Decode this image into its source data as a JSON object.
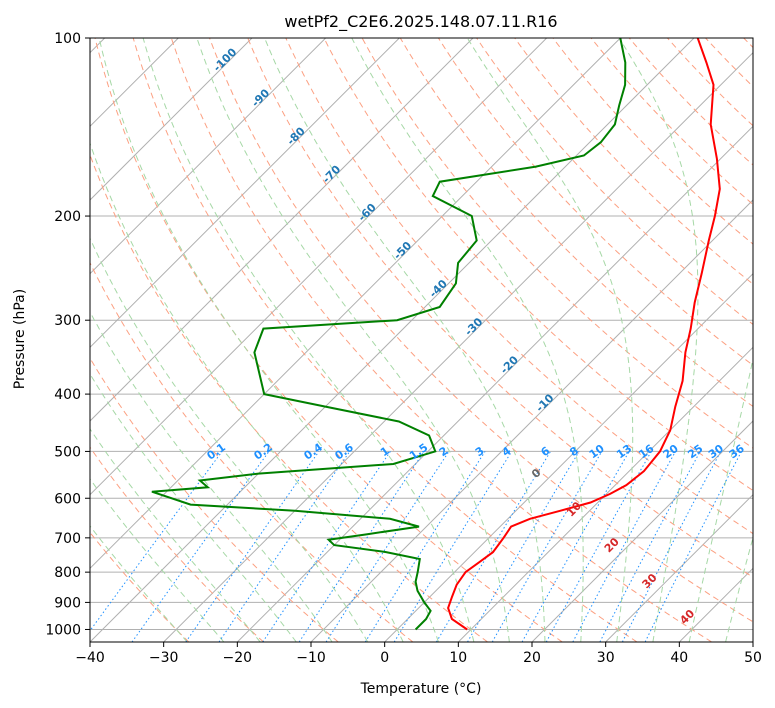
{
  "chart_data": {
    "type": "line",
    "title": "wetPf2_C2E6.2025.148.07.11.R16",
    "xlabel": "Temperature (°C)",
    "ylabel": "Pressure (hPa)",
    "xlim": [
      -40,
      50
    ],
    "ylim": [
      1050,
      100
    ],
    "y_scale": "log",
    "x_ticks": [
      -40,
      -30,
      -20,
      -10,
      0,
      10,
      20,
      30,
      40,
      50
    ],
    "y_ticks": [
      100,
      200,
      300,
      400,
      500,
      600,
      700,
      800,
      900,
      1000
    ],
    "grid": true,
    "series": [
      {
        "color": "#ff0000",
        "points": [
          {
            "p": 1000,
            "t": 9.5
          },
          {
            "p": 960,
            "t": 6
          },
          {
            "p": 920,
            "t": 4
          },
          {
            "p": 880,
            "t": 3
          },
          {
            "p": 840,
            "t": 2
          },
          {
            "p": 800,
            "t": 1.5
          },
          {
            "p": 770,
            "t": 2
          },
          {
            "p": 740,
            "t": 2.5
          },
          {
            "p": 700,
            "t": 2
          },
          {
            "p": 670,
            "t": 1.5
          },
          {
            "p": 650,
            "t": 3
          },
          {
            "p": 630,
            "t": 6
          },
          {
            "p": 610,
            "t": 9
          },
          {
            "p": 590,
            "t": 10.5
          },
          {
            "p": 570,
            "t": 11.5
          },
          {
            "p": 540,
            "t": 12
          },
          {
            "p": 500,
            "t": 11.5
          },
          {
            "p": 460,
            "t": 10
          },
          {
            "p": 420,
            "t": 7.5
          },
          {
            "p": 380,
            "t": 5
          },
          {
            "p": 340,
            "t": 1.5
          },
          {
            "p": 310,
            "t": -1
          },
          {
            "p": 280,
            "t": -4
          },
          {
            "p": 250,
            "t": -7
          },
          {
            "p": 220,
            "t": -10.5
          },
          {
            "p": 200,
            "t": -13
          },
          {
            "p": 180,
            "t": -16
          },
          {
            "p": 160,
            "t": -20.5
          },
          {
            "p": 140,
            "t": -26
          },
          {
            "p": 120,
            "t": -31
          },
          {
            "p": 110,
            "t": -35
          },
          {
            "p": 100,
            "t": -39.5
          }
        ]
      },
      {
        "color": "#008000",
        "points": [
          {
            "p": 1000,
            "t": 2.5
          },
          {
            "p": 960,
            "t": 2.5
          },
          {
            "p": 930,
            "t": 2
          },
          {
            "p": 900,
            "t": 0
          },
          {
            "p": 860,
            "t": -2.5
          },
          {
            "p": 830,
            "t": -4
          },
          {
            "p": 800,
            "t": -5
          },
          {
            "p": 760,
            "t": -6.5
          },
          {
            "p": 740,
            "t": -12
          },
          {
            "p": 720,
            "t": -20
          },
          {
            "p": 705,
            "t": -21.5
          },
          {
            "p": 690,
            "t": -17
          },
          {
            "p": 670,
            "t": -11
          },
          {
            "p": 650,
            "t": -16
          },
          {
            "p": 630,
            "t": -30
          },
          {
            "p": 615,
            "t": -45
          },
          {
            "p": 585,
            "t": -52
          },
          {
            "p": 575,
            "t": -45
          },
          {
            "p": 560,
            "t": -47
          },
          {
            "p": 545,
            "t": -40
          },
          {
            "p": 525,
            "t": -23
          },
          {
            "p": 500,
            "t": -19
          },
          {
            "p": 470,
            "t": -22
          },
          {
            "p": 445,
            "t": -28
          },
          {
            "p": 420,
            "t": -40
          },
          {
            "p": 400,
            "t": -50
          },
          {
            "p": 340,
            "t": -57
          },
          {
            "p": 310,
            "t": -59
          },
          {
            "p": 300,
            "t": -42
          },
          {
            "p": 285,
            "t": -38
          },
          {
            "p": 260,
            "t": -39
          },
          {
            "p": 240,
            "t": -41.5
          },
          {
            "p": 220,
            "t": -42
          },
          {
            "p": 200,
            "t": -46
          },
          {
            "p": 185,
            "t": -54
          },
          {
            "p": 175,
            "t": -55
          },
          {
            "p": 165,
            "t": -44
          },
          {
            "p": 158,
            "t": -39
          },
          {
            "p": 150,
            "t": -38.5
          },
          {
            "p": 140,
            "t": -39
          },
          {
            "p": 130,
            "t": -41
          },
          {
            "p": 120,
            "t": -43
          },
          {
            "p": 110,
            "t": -46
          },
          {
            "p": 100,
            "t": -50
          }
        ]
      }
    ],
    "mixing_ratio_lines": [
      {
        "label": "0.1",
        "w": 0.1
      },
      {
        "label": "0.2",
        "w": 0.2
      },
      {
        "label": "0.4",
        "w": 0.4
      },
      {
        "label": "0.6",
        "w": 0.6
      },
      {
        "label": "1",
        "w": 1
      },
      {
        "label": "1.5",
        "w": 1.5
      },
      {
        "label": "2",
        "w": 2
      },
      {
        "label": "3",
        "w": 3
      },
      {
        "label": "4",
        "w": 4
      },
      {
        "label": "6",
        "w": 6
      },
      {
        "label": "8",
        "w": 8
      },
      {
        "label": "10",
        "w": 10
      },
      {
        "label": "13",
        "w": 13
      },
      {
        "label": "16",
        "w": 16
      },
      {
        "label": "20",
        "w": 20
      },
      {
        "label": "25",
        "w": 25
      },
      {
        "label": "30",
        "w": 30
      },
      {
        "label": "36",
        "w": 36
      }
    ],
    "isotherm_labels": [
      {
        "label": "-100",
        "t": -100
      },
      {
        "label": "-90",
        "t": -90
      },
      {
        "label": "-80",
        "t": -80
      },
      {
        "label": "-70",
        "t": -70
      },
      {
        "label": "-60",
        "t": -60
      },
      {
        "label": "-50",
        "t": -50
      },
      {
        "label": "-40",
        "t": -40
      },
      {
        "label": "-30",
        "t": -30
      },
      {
        "label": "-20",
        "t": -20
      },
      {
        "label": "-10",
        "t": -10
      }
    ],
    "moist_adiabat_labels": [
      {
        "label": "0",
        "t": 0,
        "color": "#666666"
      },
      {
        "label": "10",
        "t": 10,
        "color": "#d62728"
      },
      {
        "label": "20",
        "t": 20,
        "color": "#d62728"
      },
      {
        "label": "30",
        "t": 30,
        "color": "#d62728"
      },
      {
        "label": "40",
        "t": 40,
        "color": "#d62728"
      }
    ],
    "colors": {
      "isotherm_label": "#1f77b4",
      "mixing_ratio": "#1e90ff",
      "grid": "#b0b0b0",
      "dry_adiabat": "#fca082",
      "moist_adiabat": "#a6d8a6",
      "temperature": "#ff0000",
      "dewpoint": "#008000"
    }
  }
}
